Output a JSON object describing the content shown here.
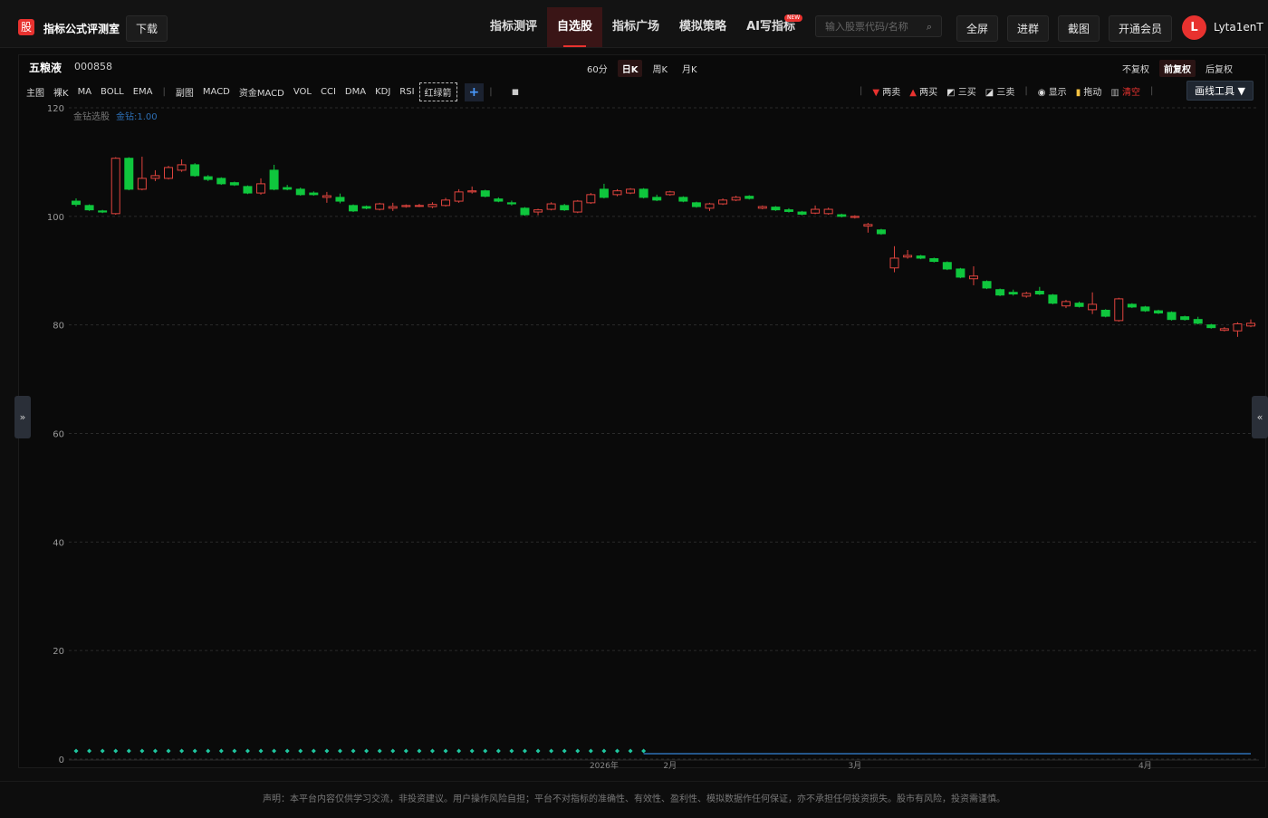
{
  "header": {
    "logo": "股",
    "title": "指标公式评测室",
    "download": "下载",
    "nav": [
      "指标测评",
      "自选股",
      "指标广场",
      "模拟策略",
      "AI写指标"
    ],
    "badge": "NEW",
    "search_placeholder": "输入股票代码/名称",
    "buttons": [
      "全屏",
      "进群",
      "截图",
      "开通会员"
    ],
    "avatar": "L",
    "username": "Lyta1enT"
  },
  "stock": {
    "name": "五粮液",
    "code": "000858",
    "periods": [
      "60分",
      "日K",
      "周K",
      "月K"
    ],
    "adjust": [
      "不复权",
      "前复权",
      "后复权"
    ]
  },
  "toolbar": {
    "main": [
      "主图",
      "裸K",
      "MA",
      "BOLL",
      "EMA"
    ],
    "sub": [
      "副图",
      "MACD",
      "资金MACD",
      "VOL",
      "CCI",
      "DMA",
      "KDJ",
      "RSI",
      "红绿箭"
    ],
    "signals": [
      "两卖",
      "两买",
      "三买",
      "三卖"
    ],
    "tools": [
      "显示",
      "拖动",
      "清空"
    ],
    "draw": "画线工具"
  },
  "chart_data": {
    "type": "candlestick",
    "up_color": "#e0443e",
    "down_color": "#0fc63d",
    "categories": [
      null,
      null,
      null,
      null,
      null,
      null,
      null,
      null,
      null,
      null,
      null,
      null,
      null,
      null,
      null,
      null,
      null,
      null,
      null,
      null,
      null,
      null,
      null,
      null,
      null,
      null,
      null,
      null,
      null,
      null,
      null,
      null,
      null,
      null,
      null,
      null,
      null,
      null,
      null,
      null,
      "2026年",
      null,
      null,
      null,
      null,
      "2月",
      null,
      null,
      null,
      null,
      null,
      null,
      null,
      null,
      null,
      null,
      null,
      null,
      null,
      "3月",
      null,
      null,
      null,
      null,
      null,
      null,
      null,
      null,
      null,
      null,
      null,
      null,
      null,
      null,
      null,
      null,
      null,
      null,
      null,
      null,
      null,
      "4月",
      null,
      null,
      null,
      null,
      null,
      null,
      null,
      null
    ],
    "open": [
      102.8,
      102.0,
      101.0,
      100.5,
      110.7,
      105.0,
      107.0,
      107.0,
      108.5,
      109.5,
      107.3,
      107.0,
      106.2,
      105.5,
      104.3,
      108.5,
      105.3,
      105.0,
      104.3,
      103.5,
      103.5,
      102.0,
      101.8,
      101.3,
      101.5,
      101.8,
      101.9,
      101.8,
      102.0,
      102.8,
      104.5,
      104.7,
      103.2,
      102.5,
      101.5,
      100.8,
      101.3,
      102.0,
      100.8,
      102.5,
      105.0,
      104.0,
      104.3,
      105.0,
      103.5,
      104.0,
      103.5,
      102.5,
      101.5,
      102.3,
      103.0,
      103.7,
      101.5,
      101.7,
      101.2,
      100.8,
      100.6,
      100.5,
      100.3,
      99.8,
      98.2,
      97.5,
      90.5,
      92.5,
      92.7,
      92.2,
      91.5,
      90.3,
      88.5,
      88.0,
      86.5,
      86.0,
      85.3,
      86.2,
      85.5,
      83.5,
      84.0,
      82.8,
      82.7,
      80.8,
      83.8,
      83.3,
      82.6,
      82.3,
      81.5,
      81.0,
      80.0,
      79.0,
      78.9,
      79.8
    ],
    "high": [
      103.3,
      102.2,
      101.2,
      110.9,
      110.9,
      111.0,
      108.5,
      109.3,
      110.5,
      109.8,
      107.6,
      107.2,
      106.4,
      105.7,
      107.0,
      109.5,
      105.8,
      105.3,
      104.6,
      104.5,
      104.2,
      102.2,
      102.0,
      102.5,
      102.5,
      102.2,
      102.3,
      102.6,
      103.4,
      105.0,
      105.5,
      104.9,
      103.5,
      102.9,
      101.7,
      101.4,
      102.6,
      102.3,
      103.0,
      104.3,
      106.0,
      105.0,
      105.2,
      105.2,
      104.0,
      104.7,
      103.7,
      102.7,
      102.5,
      103.3,
      103.8,
      103.9,
      102.0,
      101.9,
      101.5,
      101.0,
      102.0,
      101.6,
      100.5,
      100.2,
      98.8,
      97.7,
      94.5,
      93.8,
      92.9,
      92.4,
      91.7,
      90.5,
      90.8,
      88.2,
      86.7,
      86.5,
      86.1,
      87.0,
      85.7,
      84.6,
      84.3,
      86.0,
      82.9,
      85.0,
      84.0,
      83.5,
      82.8,
      82.5,
      81.7,
      81.5,
      80.2,
      79.6,
      80.5,
      81.0
    ],
    "low": [
      101.8,
      101.0,
      100.6,
      100.3,
      104.8,
      104.8,
      106.5,
      106.8,
      108.2,
      107.3,
      106.5,
      105.8,
      105.6,
      104.1,
      104.0,
      104.8,
      104.8,
      103.8,
      103.8,
      102.5,
      102.4,
      100.8,
      101.3,
      101.1,
      101.0,
      101.6,
      101.7,
      101.5,
      101.8,
      102.5,
      104.2,
      103.5,
      102.6,
      102.0,
      100.1,
      100.2,
      101.1,
      101.0,
      100.6,
      102.3,
      103.3,
      103.7,
      104.1,
      103.3,
      102.8,
      103.8,
      102.6,
      101.6,
      101.0,
      102.1,
      102.8,
      103.1,
      101.3,
      101.0,
      100.7,
      100.2,
      100.4,
      100.3,
      99.8,
      99.6,
      97.0,
      96.6,
      89.7,
      92.2,
      92.1,
      91.5,
      90.1,
      88.6,
      87.3,
      86.6,
      85.3,
      85.4,
      85.0,
      85.5,
      83.8,
      83.1,
      83.2,
      82.0,
      81.4,
      80.6,
      83.1,
      82.4,
      82.0,
      80.8,
      80.8,
      80.1,
      79.3,
      78.8,
      77.8,
      79.6
    ],
    "close": [
      102.2,
      101.2,
      100.8,
      110.7,
      105.0,
      107.0,
      107.5,
      109.0,
      109.5,
      107.5,
      106.8,
      106.0,
      105.8,
      104.3,
      106.0,
      105.0,
      105.0,
      104.0,
      104.0,
      103.8,
      102.8,
      101.0,
      101.5,
      102.3,
      101.8,
      102.0,
      102.0,
      102.2,
      103.0,
      104.5,
      104.7,
      103.7,
      102.8,
      102.3,
      100.3,
      101.2,
      102.3,
      101.2,
      102.8,
      104.0,
      103.5,
      104.7,
      105.0,
      103.5,
      103.0,
      104.5,
      102.8,
      101.8,
      102.3,
      103.0,
      103.5,
      103.3,
      101.8,
      101.2,
      100.9,
      100.4,
      101.3,
      101.3,
      100.0,
      100.0,
      98.5,
      96.8,
      92.3,
      92.8,
      92.3,
      91.7,
      90.3,
      88.8,
      89.0,
      86.8,
      85.5,
      85.7,
      85.8,
      85.7,
      84.0,
      84.3,
      83.4,
      83.8,
      81.6,
      84.8,
      83.3,
      82.6,
      82.2,
      81.0,
      81.0,
      80.3,
      79.5,
      79.3,
      80.2,
      80.3
    ],
    "ylim": [
      0,
      120
    ],
    "yticks": [
      0,
      20,
      40,
      60,
      80,
      100,
      120
    ],
    "grid": true,
    "indicator": {
      "name": "金钻选股",
      "label": "金钻:1.00",
      "series": [
        {
          "color": "#1fc7a0",
          "marker": "diamond",
          "values": [
            1.5,
            1.5,
            1.5,
            1.5,
            1.5,
            1.5,
            1.5,
            1.5,
            1.5,
            1.5,
            1.5,
            1.5,
            1.5,
            1.5,
            1.5,
            1.5,
            1.5,
            1.5,
            1.5,
            1.5,
            1.5,
            1.5,
            1.5,
            1.5,
            1.5,
            1.5,
            1.5,
            1.5,
            1.5,
            1.5,
            1.5,
            1.5,
            1.5,
            1.5,
            1.5,
            1.5,
            1.5,
            1.5,
            1.5,
            1.5,
            1.5,
            1.5,
            1.5,
            1.5,
            null,
            null,
            null,
            null,
            null,
            null,
            null,
            null,
            null,
            null,
            null,
            null,
            null,
            null,
            null,
            null,
            null,
            null,
            null,
            null,
            null,
            null,
            null,
            null,
            null,
            null,
            null,
            null,
            null,
            null,
            null,
            null,
            null,
            null,
            null,
            null,
            null,
            null,
            null,
            null,
            null,
            null,
            null,
            null,
            null,
            null
          ]
        },
        {
          "color": "#2d6fb5",
          "values": [
            null,
            null,
            null,
            null,
            null,
            null,
            null,
            null,
            null,
            null,
            null,
            null,
            null,
            null,
            null,
            null,
            null,
            null,
            null,
            null,
            null,
            null,
            null,
            null,
            null,
            null,
            null,
            null,
            null,
            null,
            null,
            null,
            null,
            null,
            null,
            null,
            null,
            null,
            null,
            null,
            null,
            null,
            null,
            1,
            1,
            1,
            1,
            1,
            1,
            1,
            1,
            1,
            1,
            1,
            1,
            1,
            1,
            1,
            1,
            1,
            1,
            1,
            1,
            1,
            1,
            1,
            1,
            1,
            1,
            1,
            1,
            1,
            1,
            1,
            1,
            1,
            1,
            1,
            1,
            1,
            1,
            1,
            1,
            1,
            1,
            1,
            1,
            1,
            1,
            1
          ]
        }
      ]
    }
  },
  "footer": {
    "disclaimer": "声明：本平台内容仅供学习交流，非投资建议。用户操作风险自担；平台不对指标的准确性、有效性、盈利性、模拟数据作任何保证，亦不承担任何投资损失。股市有风险，投资需谨慎。"
  }
}
